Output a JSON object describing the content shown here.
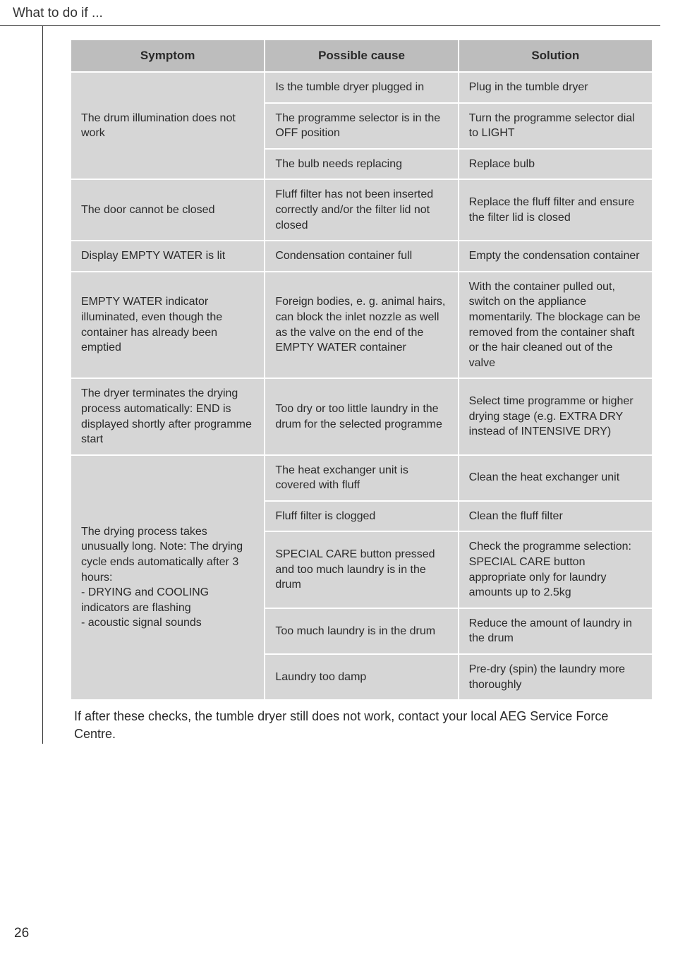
{
  "page": {
    "title": "What to do if ...",
    "number": "26",
    "footer": "If after these checks, the tumble dryer still does not work, contact your local AEG Service Force Centre."
  },
  "table": {
    "headers": {
      "c1": "Symptom",
      "c2": "Possible cause",
      "c3": "Solution"
    },
    "group1": {
      "symptom": "The drum illumination does not work",
      "r1": {
        "cause": "Is the tumble dryer plugged in",
        "solution": "Plug in the tumble dryer"
      },
      "r2": {
        "cause": "The programme selector is in the OFF position",
        "solution": "Turn the programme selector dial to LIGHT"
      },
      "r3": {
        "cause": "The bulb needs replacing",
        "solution": "Replace bulb"
      }
    },
    "group2": {
      "symptom": "The door cannot be closed",
      "cause": "Fluff filter has not been inserted correctly and/or the filter lid not closed",
      "solution": "Replace the fluff filter and ensure the filter lid is closed"
    },
    "group3": {
      "symptom": "Display EMPTY WATER is lit",
      "cause": "Condensation container full",
      "solution": "Empty the condensation container"
    },
    "group4": {
      "symptom": "EMPTY WATER indicator illuminated, even though the container has already been emptied",
      "cause": "Foreign bodies, e. g. animal hairs, can block the inlet nozzle as well as the valve on the end of the EMPTY WATER container",
      "solution": "With the container pulled out, switch on the appliance momentarily. The blockage can be removed from the container shaft or the hair cleaned out of the valve"
    },
    "group5": {
      "symptom": "The dryer terminates the drying process automatically: END is displayed shortly after programme start",
      "cause": "Too dry or too little laundry in the drum for the selected programme",
      "solution": "Select time programme or higher drying stage (e.g. EXTRA DRY instead of INTENSIVE DRY)"
    },
    "group6": {
      "symptom": "The drying process takes unusually long. Note: The drying cycle ends automatically after 3 hours:\n- DRYING and COOLING\n  indicators are flashing\n- acoustic signal sounds",
      "r1": {
        "cause": "The heat exchanger unit is covered with fluff",
        "solution": "Clean the heat exchanger unit"
      },
      "r2": {
        "cause": "Fluff filter is clogged",
        "solution": "Clean the fluff filter"
      },
      "r3": {
        "cause": "SPECIAL CARE button pressed and too much laundry is in the drum",
        "solution": "Check the programme selection: SPECIAL CARE button appropriate only for laundry amounts up to 2.5kg"
      },
      "r4": {
        "cause": "Too much laundry is in the drum",
        "solution": "Reduce the amount of laundry in the drum"
      },
      "r5": {
        "cause": "Laundry too damp",
        "solution": "Pre-dry (spin) the laundry more thoroughly"
      }
    }
  }
}
